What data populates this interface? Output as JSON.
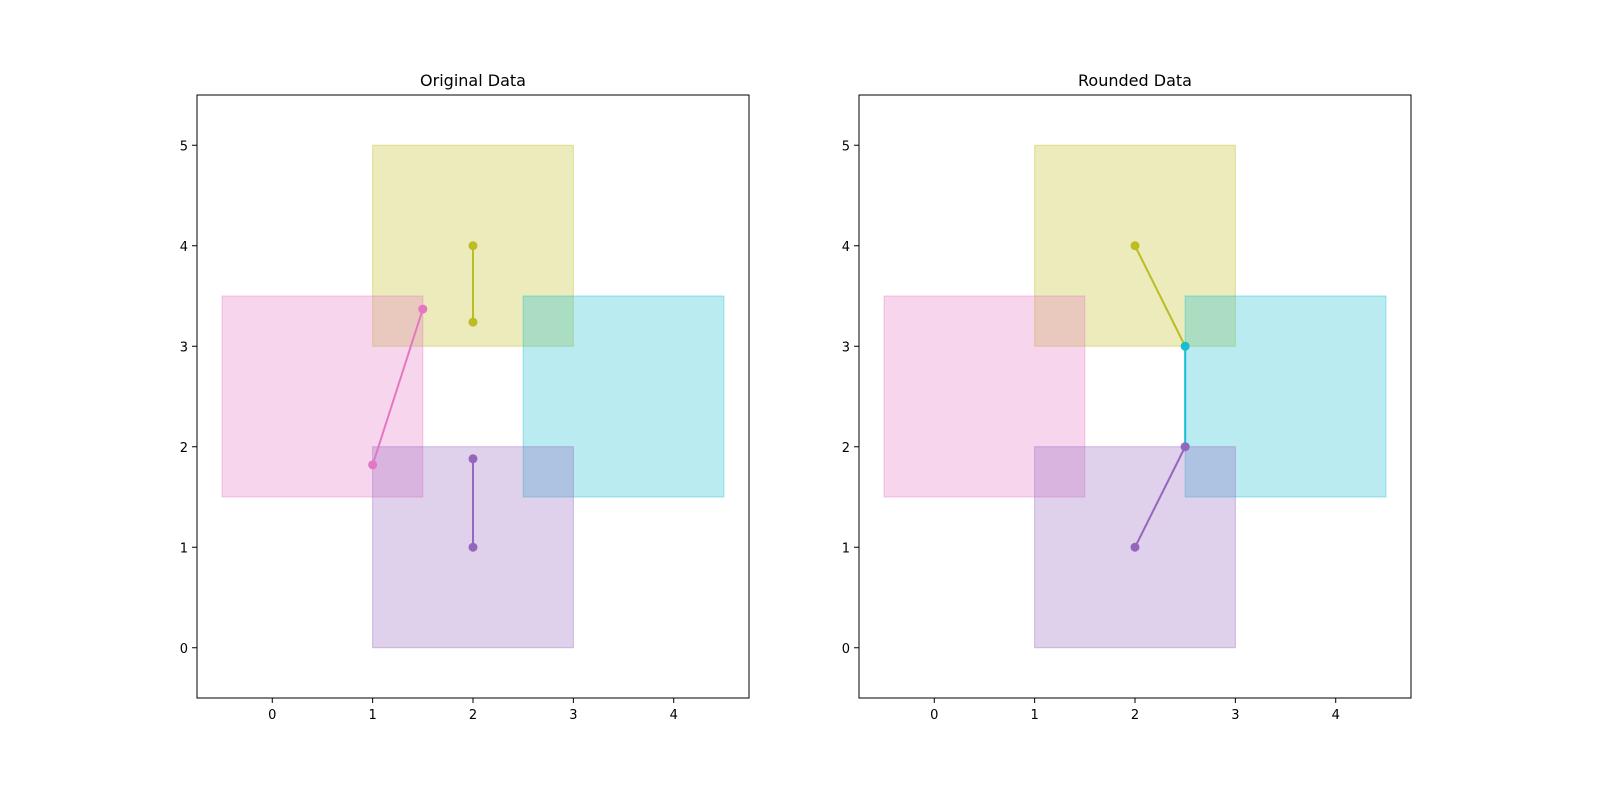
{
  "chart_data": [
    {
      "type": "scatter",
      "title": "Original Data",
      "xlabel": "",
      "ylabel": "",
      "xlim": [
        -0.75,
        4.75
      ],
      "ylim": [
        -0.5,
        5.5
      ],
      "xticks": [
        0,
        1,
        2,
        3,
        4
      ],
      "yticks": [
        0,
        1,
        2,
        3,
        4,
        5
      ],
      "grid": false,
      "rectangles": [
        {
          "x0": 1,
          "y0": 3,
          "x1": 3,
          "y1": 5,
          "color": "#bcbd22"
        },
        {
          "x0": -0.5,
          "y0": 1.5,
          "x1": 1.5,
          "y1": 3.5,
          "color": "#e377c2"
        },
        {
          "x0": 2.5,
          "y0": 1.5,
          "x1": 4.5,
          "y1": 3.5,
          "color": "#17becf"
        },
        {
          "x0": 1,
          "y0": 0,
          "x1": 3,
          "y1": 2,
          "color": "#9467bd"
        }
      ],
      "segments": [
        {
          "color": "#bcbd22",
          "points": [
            [
              2,
              4
            ],
            [
              2,
              3.24
            ]
          ]
        },
        {
          "color": "#e377c2",
          "points": [
            [
              1,
              1.82
            ],
            [
              1.5,
              3.37
            ]
          ]
        },
        {
          "color": "#9467bd",
          "points": [
            [
              2,
              1.88
            ],
            [
              2,
              1
            ]
          ]
        }
      ]
    },
    {
      "type": "scatter",
      "title": "Rounded Data",
      "xlabel": "",
      "ylabel": "",
      "xlim": [
        -0.75,
        4.75
      ],
      "ylim": [
        -0.5,
        5.5
      ],
      "xticks": [
        0,
        1,
        2,
        3,
        4
      ],
      "yticks": [
        0,
        1,
        2,
        3,
        4,
        5
      ],
      "grid": false,
      "rectangles": [
        {
          "x0": 1,
          "y0": 3,
          "x1": 3,
          "y1": 5,
          "color": "#bcbd22"
        },
        {
          "x0": -0.5,
          "y0": 1.5,
          "x1": 1.5,
          "y1": 3.5,
          "color": "#e377c2"
        },
        {
          "x0": 2.5,
          "y0": 1.5,
          "x1": 4.5,
          "y1": 3.5,
          "color": "#17becf"
        },
        {
          "x0": 1,
          "y0": 0,
          "x1": 3,
          "y1": 2,
          "color": "#9467bd"
        }
      ],
      "segments": [
        {
          "color": "#bcbd22",
          "points": [
            [
              2,
              4
            ],
            [
              2.5,
              3
            ]
          ]
        },
        {
          "color": "#17becf",
          "points": [
            [
              2.5,
              3
            ],
            [
              2.5,
              2
            ]
          ]
        },
        {
          "color": "#9467bd",
          "points": [
            [
              2.5,
              2
            ],
            [
              2,
              1
            ]
          ]
        }
      ]
    }
  ]
}
